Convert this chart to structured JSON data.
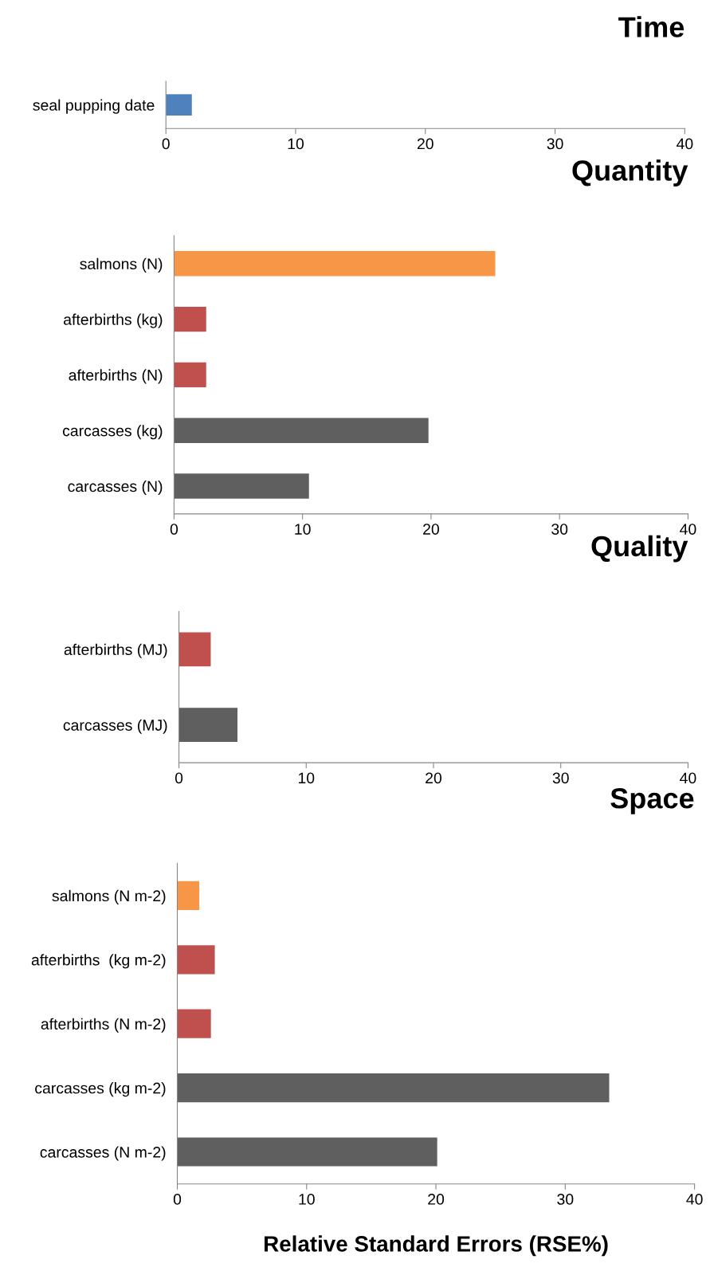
{
  "chart_data": [
    {
      "type": "bar",
      "orientation": "horizontal",
      "title": "Time",
      "categories": [
        "seal pupping date"
      ],
      "values": [
        2.0
      ],
      "colors": [
        "#4f81bd"
      ],
      "xlim": [
        0,
        40
      ],
      "xticks": [
        0,
        10,
        20,
        30,
        40
      ],
      "grid": false,
      "legend": false
    },
    {
      "type": "bar",
      "orientation": "horizontal",
      "title": "Quantity",
      "categories": [
        "salmons (N)",
        "afterbirths (kg)",
        "afterbirths (N)",
        "carcasses (kg)",
        "carcasses (N)"
      ],
      "values": [
        25.0,
        2.5,
        2.5,
        19.8,
        10.5
      ],
      "colors": [
        "#f79646",
        "#c0504d",
        "#c0504d",
        "#5f5f5f",
        "#5f5f5f"
      ],
      "xlim": [
        0,
        40
      ],
      "xticks": [
        0,
        10,
        20,
        30,
        40
      ],
      "grid": false,
      "legend": false
    },
    {
      "type": "bar",
      "orientation": "horizontal",
      "title": "Quality",
      "categories": [
        "afterbirths (MJ)",
        "carcasses (MJ)"
      ],
      "values": [
        2.5,
        4.6
      ],
      "colors": [
        "#c0504d",
        "#5f5f5f"
      ],
      "xlim": [
        0,
        40
      ],
      "xticks": [
        0,
        10,
        20,
        30,
        40
      ],
      "grid": false,
      "legend": false
    },
    {
      "type": "bar",
      "orientation": "horizontal",
      "title": "Space",
      "xlabel": "Relative Standard Errors (RSE%)",
      "categories": [
        "salmons (N m-2)",
        "afterbirths  (kg m-2)",
        "afterbirths (N m-2)",
        "carcasses (kg m-2)",
        "carcasses (N m-2)"
      ],
      "values": [
        1.7,
        2.9,
        2.6,
        33.4,
        20.1
      ],
      "colors": [
        "#f79646",
        "#c0504d",
        "#c0504d",
        "#5f5f5f",
        "#5f5f5f"
      ],
      "xlim": [
        0,
        40
      ],
      "xticks": [
        0,
        10,
        20,
        30,
        40
      ],
      "grid": false,
      "legend": false
    }
  ]
}
